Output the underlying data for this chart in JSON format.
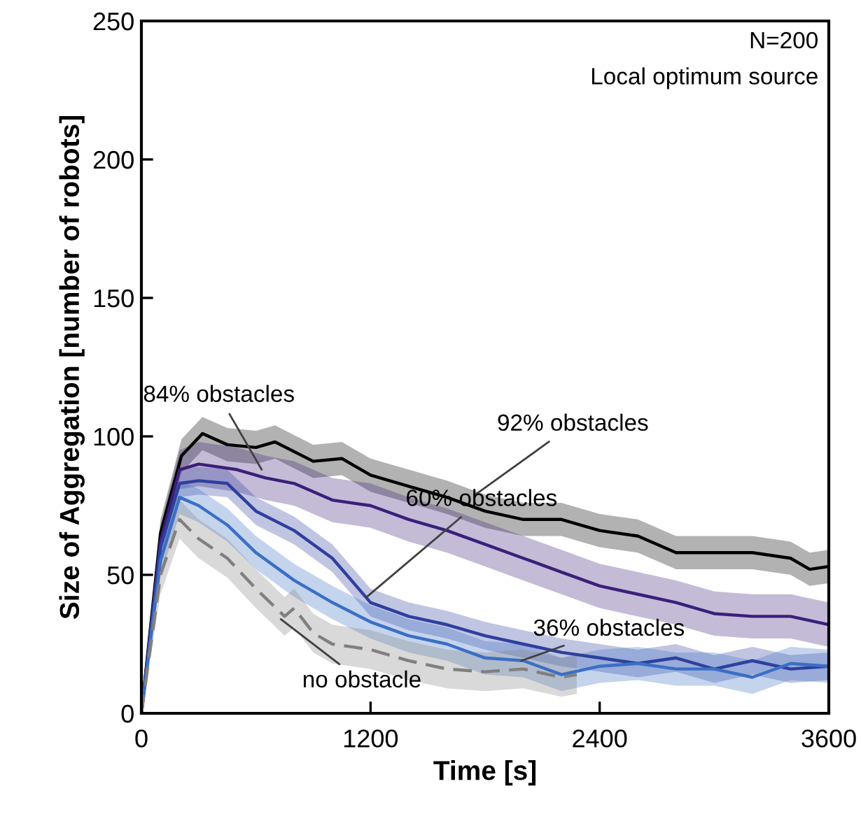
{
  "chart_data": {
    "type": "line",
    "xlabel": "Time [s]",
    "ylabel": "Size of Aggregation [number of robots]",
    "xlim": [
      0,
      3600
    ],
    "xticks": [
      0,
      1200,
      2400,
      3600
    ],
    "ylim": [
      0,
      250
    ],
    "yticks": [
      0,
      50,
      100,
      150,
      200,
      250
    ],
    "grid": false,
    "legend": false,
    "annotations": [
      "N=200",
      "Local optimum source",
      {
        "text": "92% obstacles",
        "x": 1750,
        "y": 79
      },
      {
        "text": "84% obstacles",
        "x": 630,
        "y": 88
      },
      {
        "text": "60% obstacles",
        "x": 1180,
        "y": 42
      },
      {
        "text": "36% obstacles",
        "x": 1990,
        "y": 19
      },
      {
        "text": "no obstacle",
        "x": 730,
        "y": 34
      }
    ],
    "series": [
      {
        "color": "#000000",
        "line_style": "solid",
        "x": [
          0,
          100,
          210,
          320,
          450,
          600,
          700,
          900,
          1050,
          1200,
          1400,
          1600,
          1800,
          2000,
          2200,
          2400,
          2600,
          2800,
          3000,
          3200,
          3400,
          3500,
          3600
        ],
        "values": [
          0,
          65,
          93,
          101,
          97,
          96,
          98,
          91,
          92,
          86,
          82,
          78,
          73,
          70,
          70,
          66,
          64,
          58,
          58,
          58,
          56,
          52,
          53
        ],
        "lower": [
          0,
          60,
          87,
          95,
          91,
          90,
          92,
          85,
          86,
          80,
          76,
          72,
          67,
          64,
          64,
          60,
          58,
          52,
          52,
          52,
          50,
          46,
          47
        ],
        "upper": [
          0,
          70,
          99,
          107,
          103,
          102,
          104,
          97,
          98,
          92,
          88,
          84,
          79,
          76,
          76,
          72,
          70,
          64,
          64,
          64,
          62,
          58,
          59
        ]
      },
      {
        "color": "#3b1f7a",
        "line_style": "solid",
        "x": [
          0,
          100,
          200,
          300,
          500,
          650,
          800,
          1000,
          1200,
          1400,
          1600,
          1800,
          2000,
          2200,
          2400,
          2600,
          2800,
          3000,
          3200,
          3400,
          3600
        ],
        "values": [
          0,
          62,
          88,
          90,
          88,
          85,
          83,
          77,
          75,
          70,
          66,
          61,
          56,
          51,
          46,
          43,
          40,
          36,
          35,
          35,
          32
        ],
        "lower": [
          0,
          56,
          81,
          82,
          80,
          77,
          75,
          69,
          67,
          62,
          58,
          53,
          48,
          43,
          38,
          35,
          32,
          28,
          27,
          27,
          24
        ],
        "upper": [
          0,
          68,
          95,
          98,
          96,
          93,
          91,
          85,
          83,
          78,
          74,
          69,
          64,
          59,
          54,
          51,
          48,
          44,
          43,
          43,
          40
        ]
      },
      {
        "color": "#2e3f9e",
        "line_style": "solid",
        "x": [
          0,
          100,
          200,
          300,
          450,
          600,
          800,
          1000,
          1200,
          1400,
          1600,
          1800,
          2000,
          2200,
          2400,
          2600,
          2800,
          3000,
          3200,
          3400,
          3600
        ],
        "values": [
          0,
          60,
          83,
          84,
          83,
          73,
          66,
          56,
          40,
          35,
          32,
          28,
          25,
          22,
          20,
          18,
          20,
          16,
          19,
          16,
          17
        ],
        "lower": [
          0,
          55,
          78,
          79,
          78,
          68,
          61,
          51,
          35,
          30,
          27,
          23,
          20,
          17,
          15,
          13,
          15,
          11,
          14,
          11,
          12
        ],
        "upper": [
          0,
          65,
          88,
          89,
          88,
          78,
          71,
          61,
          45,
          40,
          37,
          33,
          30,
          27,
          25,
          23,
          25,
          21,
          24,
          21,
          22
        ]
      },
      {
        "color": "#3a6fc4",
        "line_style": "solid",
        "x": [
          0,
          100,
          200,
          300,
          450,
          600,
          800,
          1000,
          1200,
          1400,
          1600,
          1800,
          2000,
          2200,
          2400,
          2600,
          2800,
          3000,
          3200,
          3400,
          3600
        ],
        "values": [
          0,
          55,
          78,
          75,
          68,
          58,
          48,
          40,
          33,
          28,
          25,
          20,
          19,
          14,
          17,
          18,
          16,
          16,
          13,
          18,
          17
        ],
        "lower": [
          0,
          49,
          72,
          69,
          62,
          52,
          42,
          34,
          27,
          22,
          19,
          14,
          13,
          8,
          11,
          12,
          10,
          10,
          7,
          12,
          11
        ],
        "upper": [
          0,
          61,
          84,
          81,
          74,
          64,
          54,
          46,
          39,
          34,
          31,
          26,
          25,
          20,
          23,
          24,
          22,
          22,
          19,
          24,
          23
        ]
      },
      {
        "color": "#808080",
        "line_style": "dashed",
        "x": [
          0,
          100,
          200,
          300,
          450,
          600,
          750,
          800,
          900,
          1000,
          1200,
          1400,
          1600,
          1800,
          2000,
          2200,
          2280
        ],
        "values": [
          0,
          50,
          70,
          63,
          56,
          45,
          35,
          38,
          29,
          25,
          23,
          19,
          16,
          15,
          16,
          13,
          14
        ],
        "lower": [
          0,
          43,
          63,
          56,
          49,
          38,
          28,
          31,
          22,
          18,
          16,
          12,
          9,
          8,
          9,
          6,
          7
        ],
        "upper": [
          0,
          57,
          77,
          70,
          63,
          52,
          42,
          45,
          36,
          32,
          30,
          26,
          23,
          22,
          23,
          20,
          21
        ]
      }
    ]
  }
}
